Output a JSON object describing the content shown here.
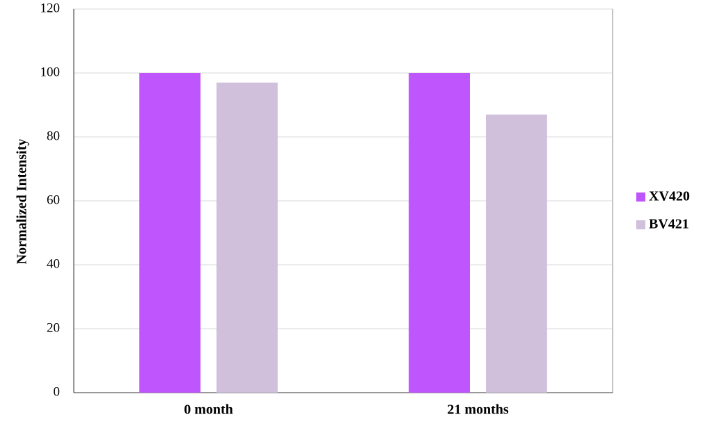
{
  "chart_data": {
    "type": "bar",
    "y_label": "Normalized Intensity",
    "categories": [
      "0 month",
      "21 months"
    ],
    "series": [
      {
        "name": "XV420",
        "color": "#bf55fc",
        "values": [
          100,
          100
        ]
      },
      {
        "name": "BV421",
        "color": "#d0c0dc",
        "values": [
          97,
          87
        ]
      }
    ],
    "ylim": [
      0,
      120
    ],
    "yticks": [
      0,
      20,
      40,
      60,
      80,
      100,
      120
    ],
    "grid": true,
    "legend": "right"
  }
}
